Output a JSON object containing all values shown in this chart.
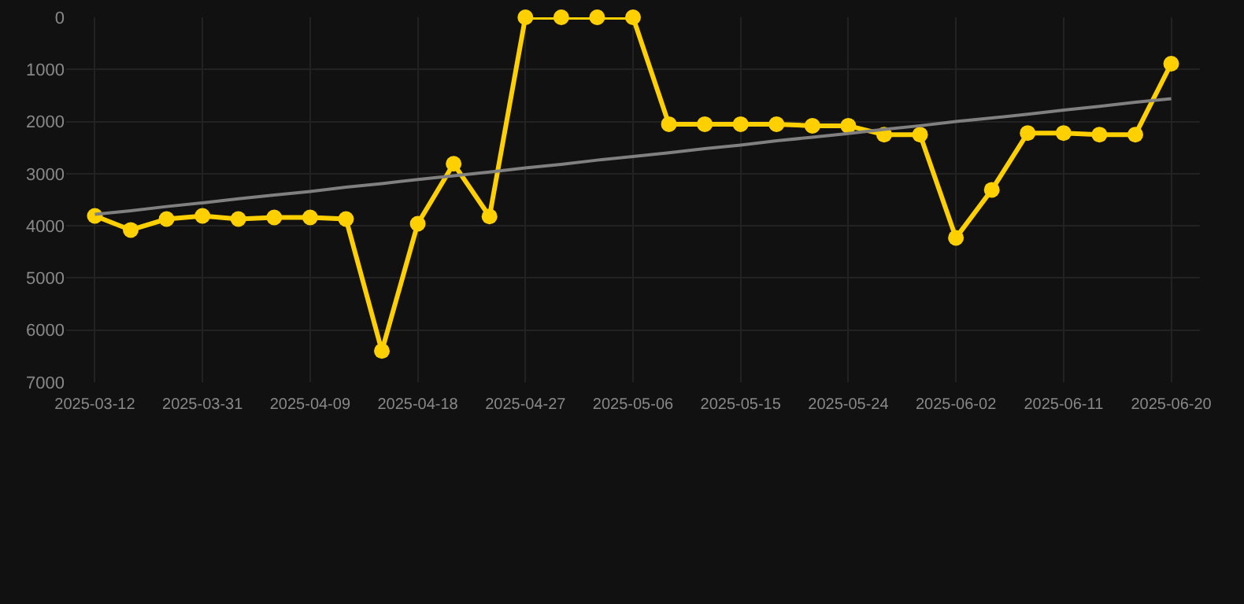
{
  "chart_data": {
    "type": "line",
    "categories": [
      "2025-03-12",
      null,
      null,
      "2025-03-31",
      null,
      null,
      "2025-04-09",
      null,
      null,
      "2025-04-18",
      null,
      null,
      "2025-04-27",
      null,
      null,
      "2025-05-06",
      null,
      null,
      "2025-05-15",
      null,
      null,
      "2025-05-24",
      null,
      null,
      "2025-06-02",
      null,
      null,
      "2025-06-11",
      null,
      null,
      "2025-06-20"
    ],
    "series": [
      {
        "color": "#ffd000",
        "marker": "circle",
        "values": [
          3810,
          4080,
          3870,
          3810,
          3870,
          3840,
          3840,
          3870,
          6400,
          3960,
          2810,
          3820,
          0,
          0,
          0,
          0,
          2050,
          2050,
          2050,
          2050,
          2080,
          2080,
          2250,
          2250,
          4230,
          3310,
          2220,
          2220,
          2250,
          2250,
          890
        ]
      },
      {
        "type": "line",
        "color": "#808080",
        "marker": "none",
        "values": [
          3780,
          3710,
          3630,
          3560,
          3480,
          3410,
          3340,
          3260,
          3190,
          3110,
          3040,
          2970,
          2890,
          2820,
          2740,
          2670,
          2600,
          2520,
          2450,
          2370,
          2300,
          2230,
          2150,
          2080,
          2000,
          1930,
          1860,
          1780,
          1710,
          1630,
          1560
        ]
      }
    ],
    "ylim": [
      7000,
      0
    ],
    "yticks": [
      0,
      1000,
      2000,
      3000,
      4000,
      5000,
      6000,
      7000
    ],
    "grid": true
  }
}
